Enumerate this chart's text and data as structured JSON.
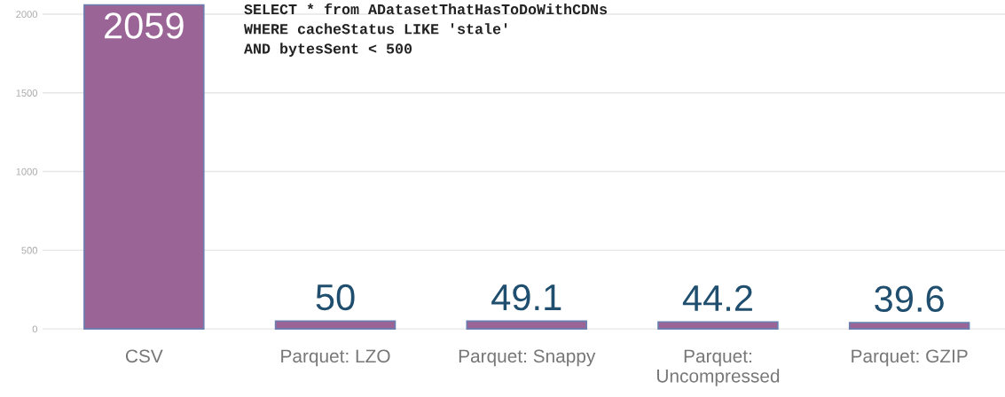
{
  "chart_data": {
    "type": "bar",
    "categories": [
      "CSV",
      "Parquet: LZO",
      "Parquet: Snappy",
      "Parquet:\nUncompressed",
      "Parquet: GZIP"
    ],
    "values": [
      2059,
      50,
      49.1,
      44.2,
      39.6
    ],
    "color": "#9a6496",
    "data_labels": true,
    "ylim": [
      -50,
      2090
    ],
    "yticks": [
      0,
      500,
      1000,
      1500,
      2000
    ],
    "grid": "y",
    "annotations": [
      "SELECT * from ADatasetThatHasToDoWithCDNs\nWHERE cacheStatus LIKE 'stale'\nAND bytesSent < 500"
    ]
  }
}
